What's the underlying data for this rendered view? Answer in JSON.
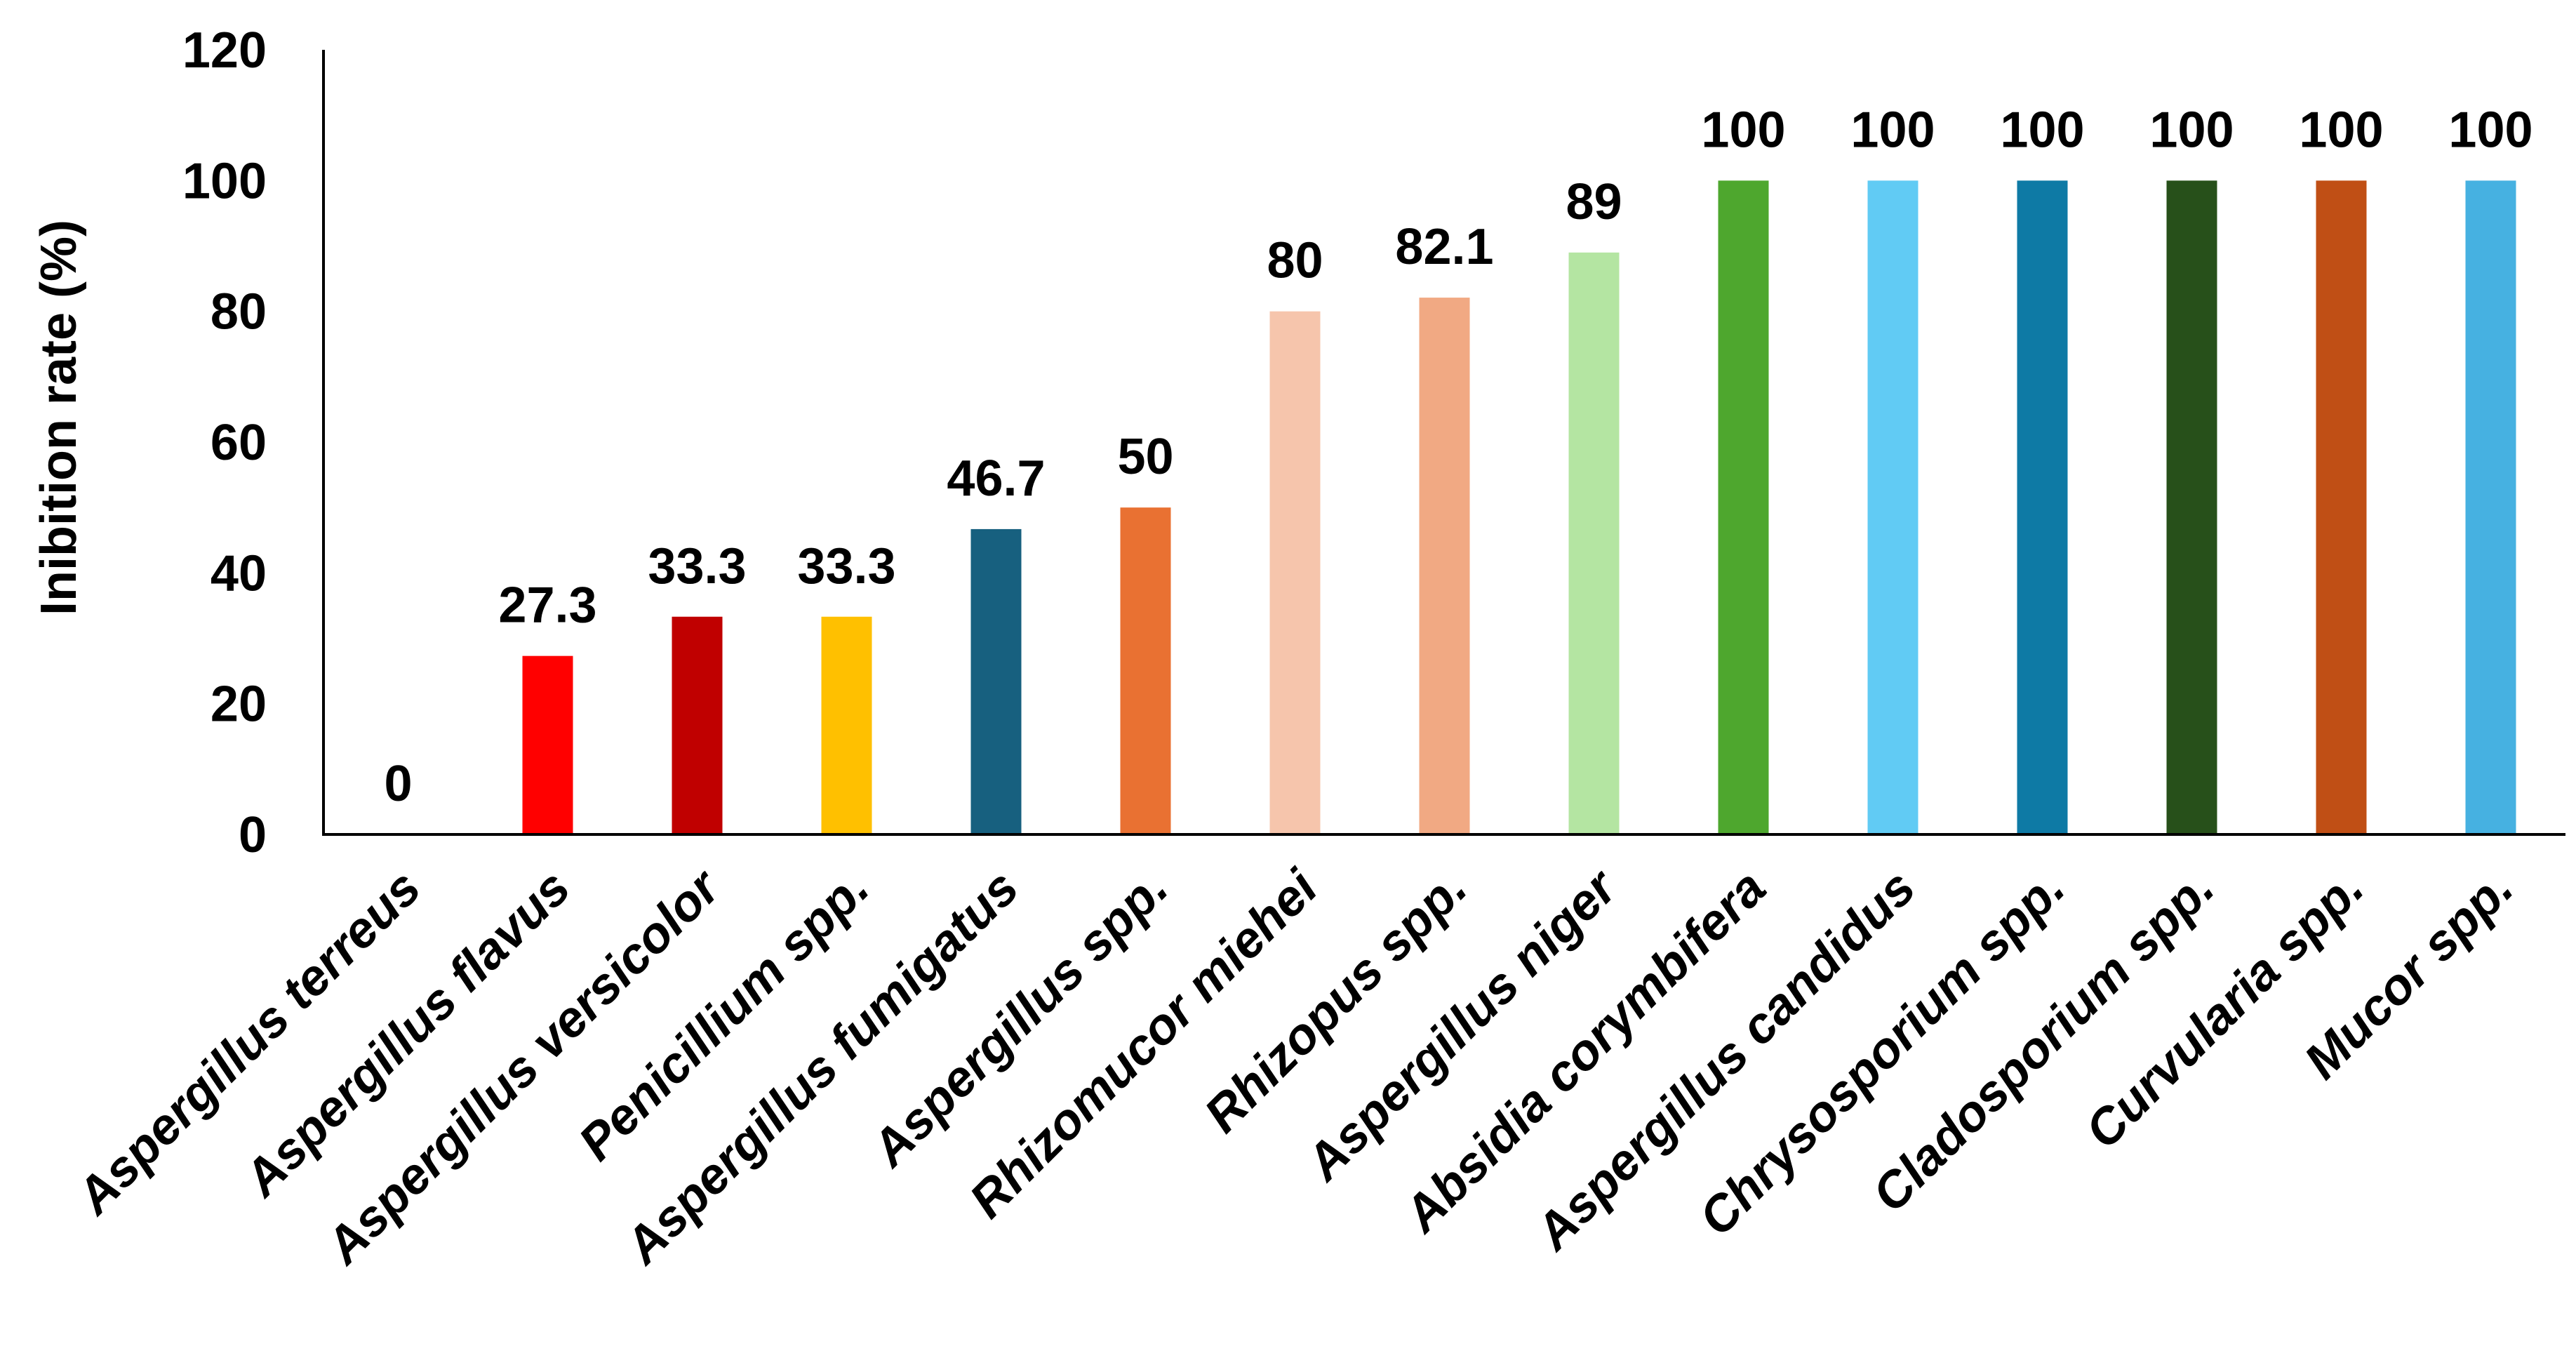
{
  "chart_data": {
    "type": "bar",
    "title": "",
    "xlabel": "",
    "ylabel": "Inibition rate (%)",
    "ylim": [
      0,
      120
    ],
    "yticks": [
      0,
      20,
      40,
      60,
      80,
      100,
      120
    ],
    "grid": false,
    "legend": "none",
    "categories": [
      "Aspergillus terreus",
      "Aspergillus flavus",
      "Aspergillus  versicolor",
      "Penicillium spp.",
      "Aspergillus  fumigatus",
      "Aspergillus spp.",
      "Rhizomucor miehei",
      "Rhizopus spp.",
      "Aspergillus niger",
      "Absidia corymbifera",
      "Aspergillus candidus",
      "Chrysosporium spp.",
      "Cladosporium spp.",
      "Curvularia spp.",
      "Mucor spp."
    ],
    "values": [
      0,
      27.3,
      33.3,
      33.3,
      46.7,
      50,
      80,
      82.1,
      89,
      100,
      100,
      100,
      100,
      100,
      100
    ],
    "data_labels": [
      "0",
      "27.3",
      "33.3",
      "33.3",
      "46.7",
      "50",
      "80",
      "82.1",
      "89",
      "100",
      "100",
      "100",
      "100",
      "100",
      "100"
    ],
    "colors": [
      "#FFFFFF",
      "#FF0000",
      "#C00000",
      "#FFC000",
      "#17607F",
      "#E97132",
      "#F6C5AC",
      "#F1A983",
      "#B4E5A2",
      "#4EA72E",
      "#61CBF4",
      "#0E7AA5",
      "#27501A",
      "#C04F15",
      "#46B1E1"
    ]
  }
}
